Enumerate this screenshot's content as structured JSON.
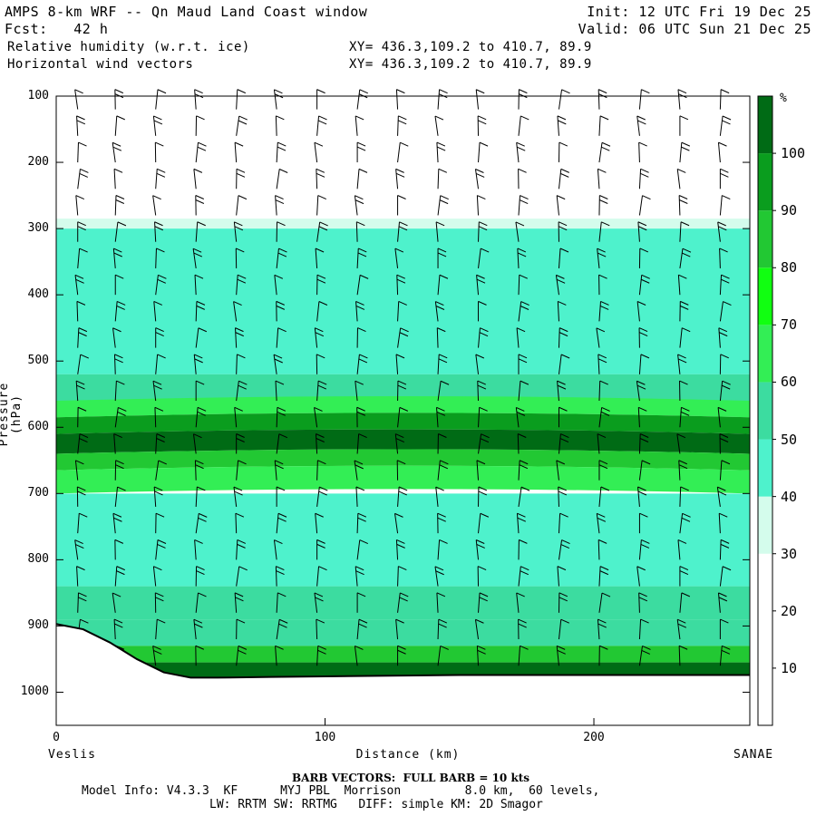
{
  "header": {
    "title": "AMPS 8-km WRF -- Qn Maud Land Coast window",
    "init": "Init: 12 UTC Fri 19 Dec 25",
    "forecast": "Fcst:   42 h",
    "valid": "Valid: 06 UTC Sun 21 Dec 25",
    "field1": "Relative humidity (w.r.t. ice)",
    "field1_xy": "XY= 436.3,109.2 to 410.7, 89.9",
    "field2": "Horizontal wind vectors",
    "field2_xy": "XY= 436.3,109.2 to 410.7, 89.9"
  },
  "axes": {
    "y_title": "Pressure (hPa)",
    "x_title": "Distance (km)",
    "x_left_name": "Veslis",
    "x_right_name": "SANAE"
  },
  "colorbar": {
    "unit": "%",
    "levels": [
      "10",
      "20",
      "30",
      "40",
      "50",
      "60",
      "70",
      "80",
      "90",
      "100"
    ],
    "colors": [
      "#ffffff",
      "#ffffff",
      "#ffffff",
      "#d4fcec",
      "#4ef2cc",
      "#3cdca0",
      "#33ee55",
      "#11ff11",
      "#22c833",
      "#0a9d1e",
      "#006b15",
      "#3c5a18"
    ]
  },
  "footer": {
    "barb_note": "BARB VECTORS:  FULL BARB = 10 kts",
    "model_line1": "Model Info: V4.3.3  KF      MYJ PBL  Morrison         8.0 km,  60 levels,",
    "model_line2": "LW: RRTM SW: RRTMG   DIFF: simple KM: 2D Smagor"
  },
  "chart_data": {
    "type": "heatmap",
    "title": "Relative humidity (w.r.t. ice) / Horizontal wind vectors",
    "xlabel": "Distance (km)",
    "ylabel": "Pressure (hPa)",
    "xlim": [
      0,
      258
    ],
    "ylim": [
      1050,
      100
    ],
    "x_ticks": [
      0,
      100,
      200
    ],
    "y_ticks": [
      100,
      200,
      300,
      400,
      500,
      600,
      700,
      800,
      900,
      1000
    ],
    "colorbar_ticks": [
      10,
      20,
      30,
      40,
      50,
      60,
      70,
      80,
      90,
      100
    ],
    "terrain_surface_hpa": [
      [
        0,
        897
      ],
      [
        10,
        905
      ],
      [
        20,
        925
      ],
      [
        30,
        950
      ],
      [
        40,
        970
      ],
      [
        50,
        978
      ],
      [
        60,
        978
      ],
      [
        80,
        977
      ],
      [
        100,
        976
      ],
      [
        150,
        974
      ],
      [
        200,
        974
      ],
      [
        258,
        974
      ]
    ],
    "humidity_layers": [
      {
        "from_hpa": 100,
        "to_hpa": 285,
        "rh_pct": 20
      },
      {
        "from_hpa": 285,
        "to_hpa": 300,
        "rh_pct": 35
      },
      {
        "from_hpa": 300,
        "to_hpa": 520,
        "rh_pct": 45
      },
      {
        "from_hpa": 520,
        "to_hpa": 560,
        "rh_pct": 55
      },
      {
        "from_hpa": 560,
        "to_hpa": 585,
        "rh_pct": 65
      },
      {
        "from_hpa": 585,
        "to_hpa": 610,
        "rh_pct": 95
      },
      {
        "from_hpa": 610,
        "to_hpa": 640,
        "rh_pct": 100
      },
      {
        "from_hpa": 640,
        "to_hpa": 665,
        "rh_pct": 85
      },
      {
        "from_hpa": 665,
        "to_hpa": 700,
        "rh_pct": 65
      },
      {
        "from_hpa": 700,
        "to_hpa": 840,
        "rh_pct": 48
      },
      {
        "from_hpa": 840,
        "to_hpa": 890,
        "rh_pct": 58
      },
      {
        "from_hpa": 890,
        "to_hpa": 930,
        "rh_pct": 50
      },
      {
        "from_hpa": 930,
        "to_hpa": 955,
        "rh_pct": 80
      },
      {
        "from_hpa": 955,
        "to_hpa": 980,
        "rh_pct": 100
      }
    ],
    "barb_grid": {
      "x_km": [
        8,
        22,
        37,
        52,
        67,
        82,
        97,
        112,
        127,
        142,
        157,
        172,
        187,
        202,
        217,
        232,
        247
      ],
      "p_hpa": [
        120,
        160,
        200,
        240,
        280,
        320,
        360,
        400,
        440,
        480,
        520,
        560,
        600,
        640,
        680,
        720,
        760,
        800,
        840,
        880,
        920,
        960
      ]
    }
  }
}
